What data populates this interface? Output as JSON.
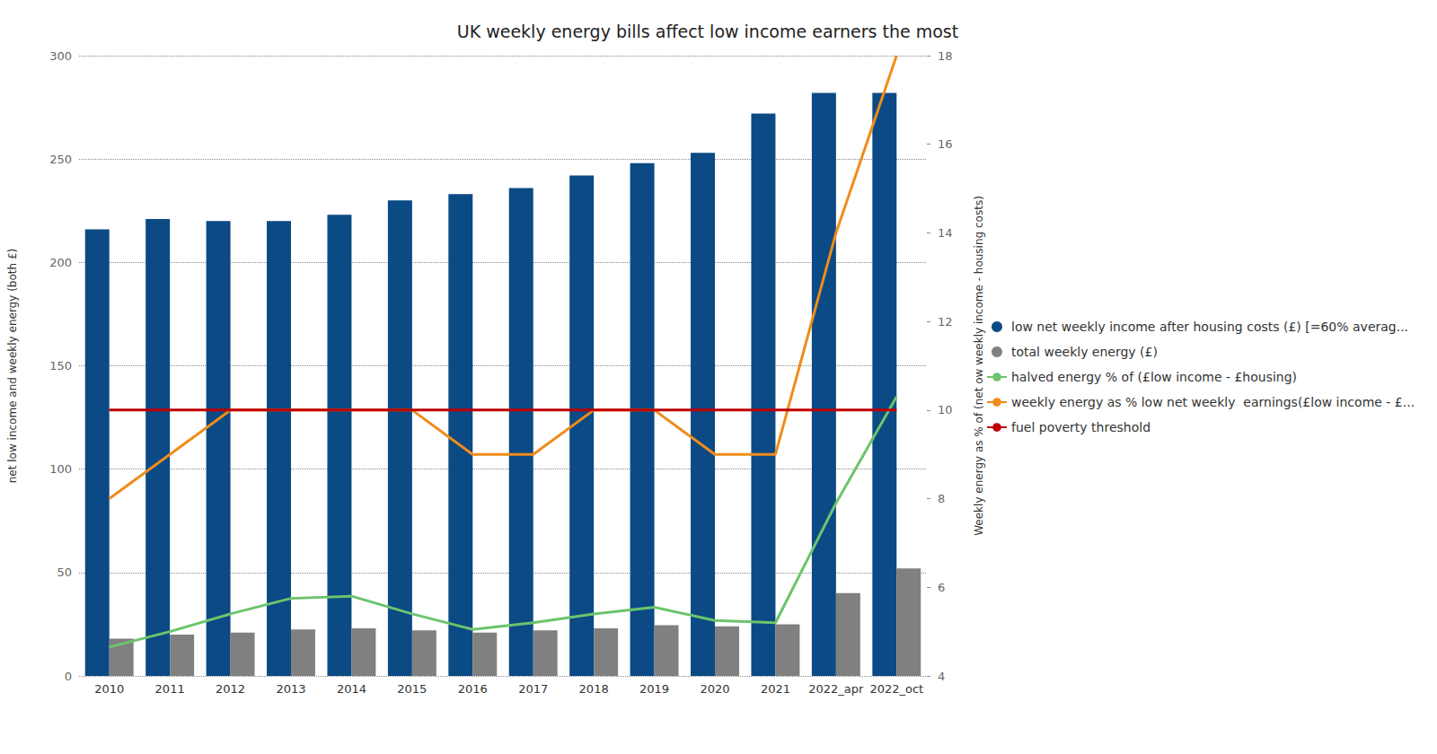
{
  "chart_data": {
    "type": "bar",
    "title": "UK weekly energy bills affect low income earners the most",
    "y_label": "net low income and weekly energy (both £)",
    "y2_label": "Weekly energy as % of (net ow weekly income - housing costs)",
    "categories": [
      "2010",
      "2011",
      "2012",
      "2013",
      "2014",
      "2015",
      "2016",
      "2017",
      "2018",
      "2019",
      "2020",
      "2021",
      "2022_apr",
      "2022_oct"
    ],
    "series": [
      {
        "name": "low net weekly income after housing costs (£) [=60% averag...",
        "type": "bar",
        "color": "#0b4a84",
        "values": [
          216,
          221,
          220,
          220,
          223,
          230,
          233,
          236,
          242,
          248,
          253,
          272,
          282,
          282
        ]
      },
      {
        "name": "total weekly energy (£)",
        "type": "bar",
        "color": "#808080",
        "values": [
          18,
          20,
          21,
          22.5,
          23,
          22,
          21,
          22,
          23,
          24.5,
          24,
          25,
          40,
          52
        ]
      },
      {
        "name": "halved energy % of (£low income - £housing)",
        "type": "line",
        "axis": "y2",
        "color": "#6cc46c",
        "values": [
          4.65,
          5.0,
          5.4,
          5.75,
          5.8,
          5.4,
          5.05,
          5.2,
          5.4,
          5.55,
          5.25,
          5.2,
          7.9,
          10.3
        ]
      },
      {
        "name": "weekly energy as % low net weekly  earnings(£low income - £...",
        "type": "line",
        "axis": "y2",
        "color": "#f08c1a",
        "values": [
          8,
          9,
          10,
          10,
          10,
          10,
          9,
          9,
          10,
          10,
          9,
          9,
          14,
          18
        ]
      },
      {
        "name": "fuel poverty threshold",
        "type": "line",
        "axis": "y2",
        "color": "#c00000",
        "values": [
          10,
          10,
          10,
          10,
          10,
          10,
          10,
          10,
          10,
          10,
          10,
          10,
          10,
          10
        ]
      }
    ],
    "ylim": [
      0,
      300
    ],
    "yticks": [
      0,
      50,
      100,
      150,
      200,
      250,
      300
    ],
    "y2lim": [
      4,
      18
    ],
    "y2ticks": [
      4,
      6,
      8,
      10,
      12,
      14,
      16,
      18
    ],
    "grid": true,
    "legend": "right"
  }
}
